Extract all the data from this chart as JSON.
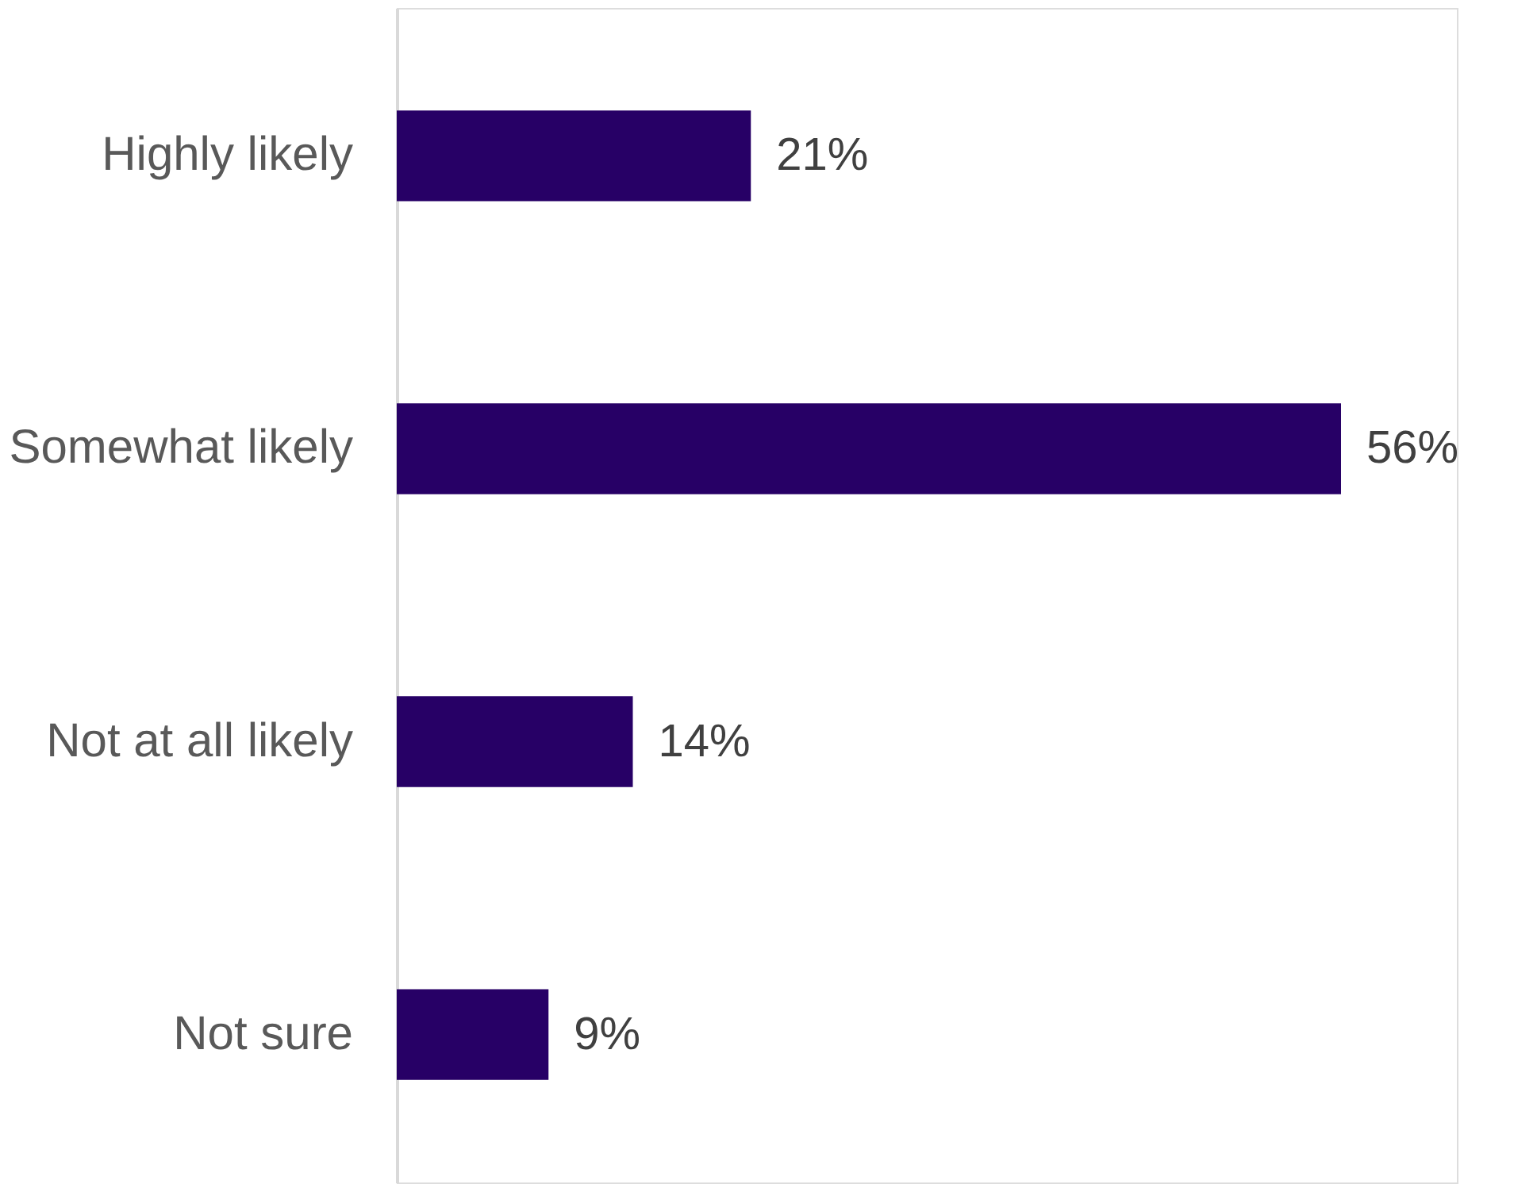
{
  "chart_data": {
    "type": "bar",
    "orientation": "horizontal",
    "categories": [
      "Highly likely",
      "Somewhat likely",
      "Not at all likely",
      "Not sure"
    ],
    "values": [
      21,
      56,
      14,
      9
    ],
    "value_labels": [
      "21%",
      "56%",
      "14%",
      "9%"
    ],
    "color": "#270066",
    "tick_labels": "y",
    "grid": false
  }
}
